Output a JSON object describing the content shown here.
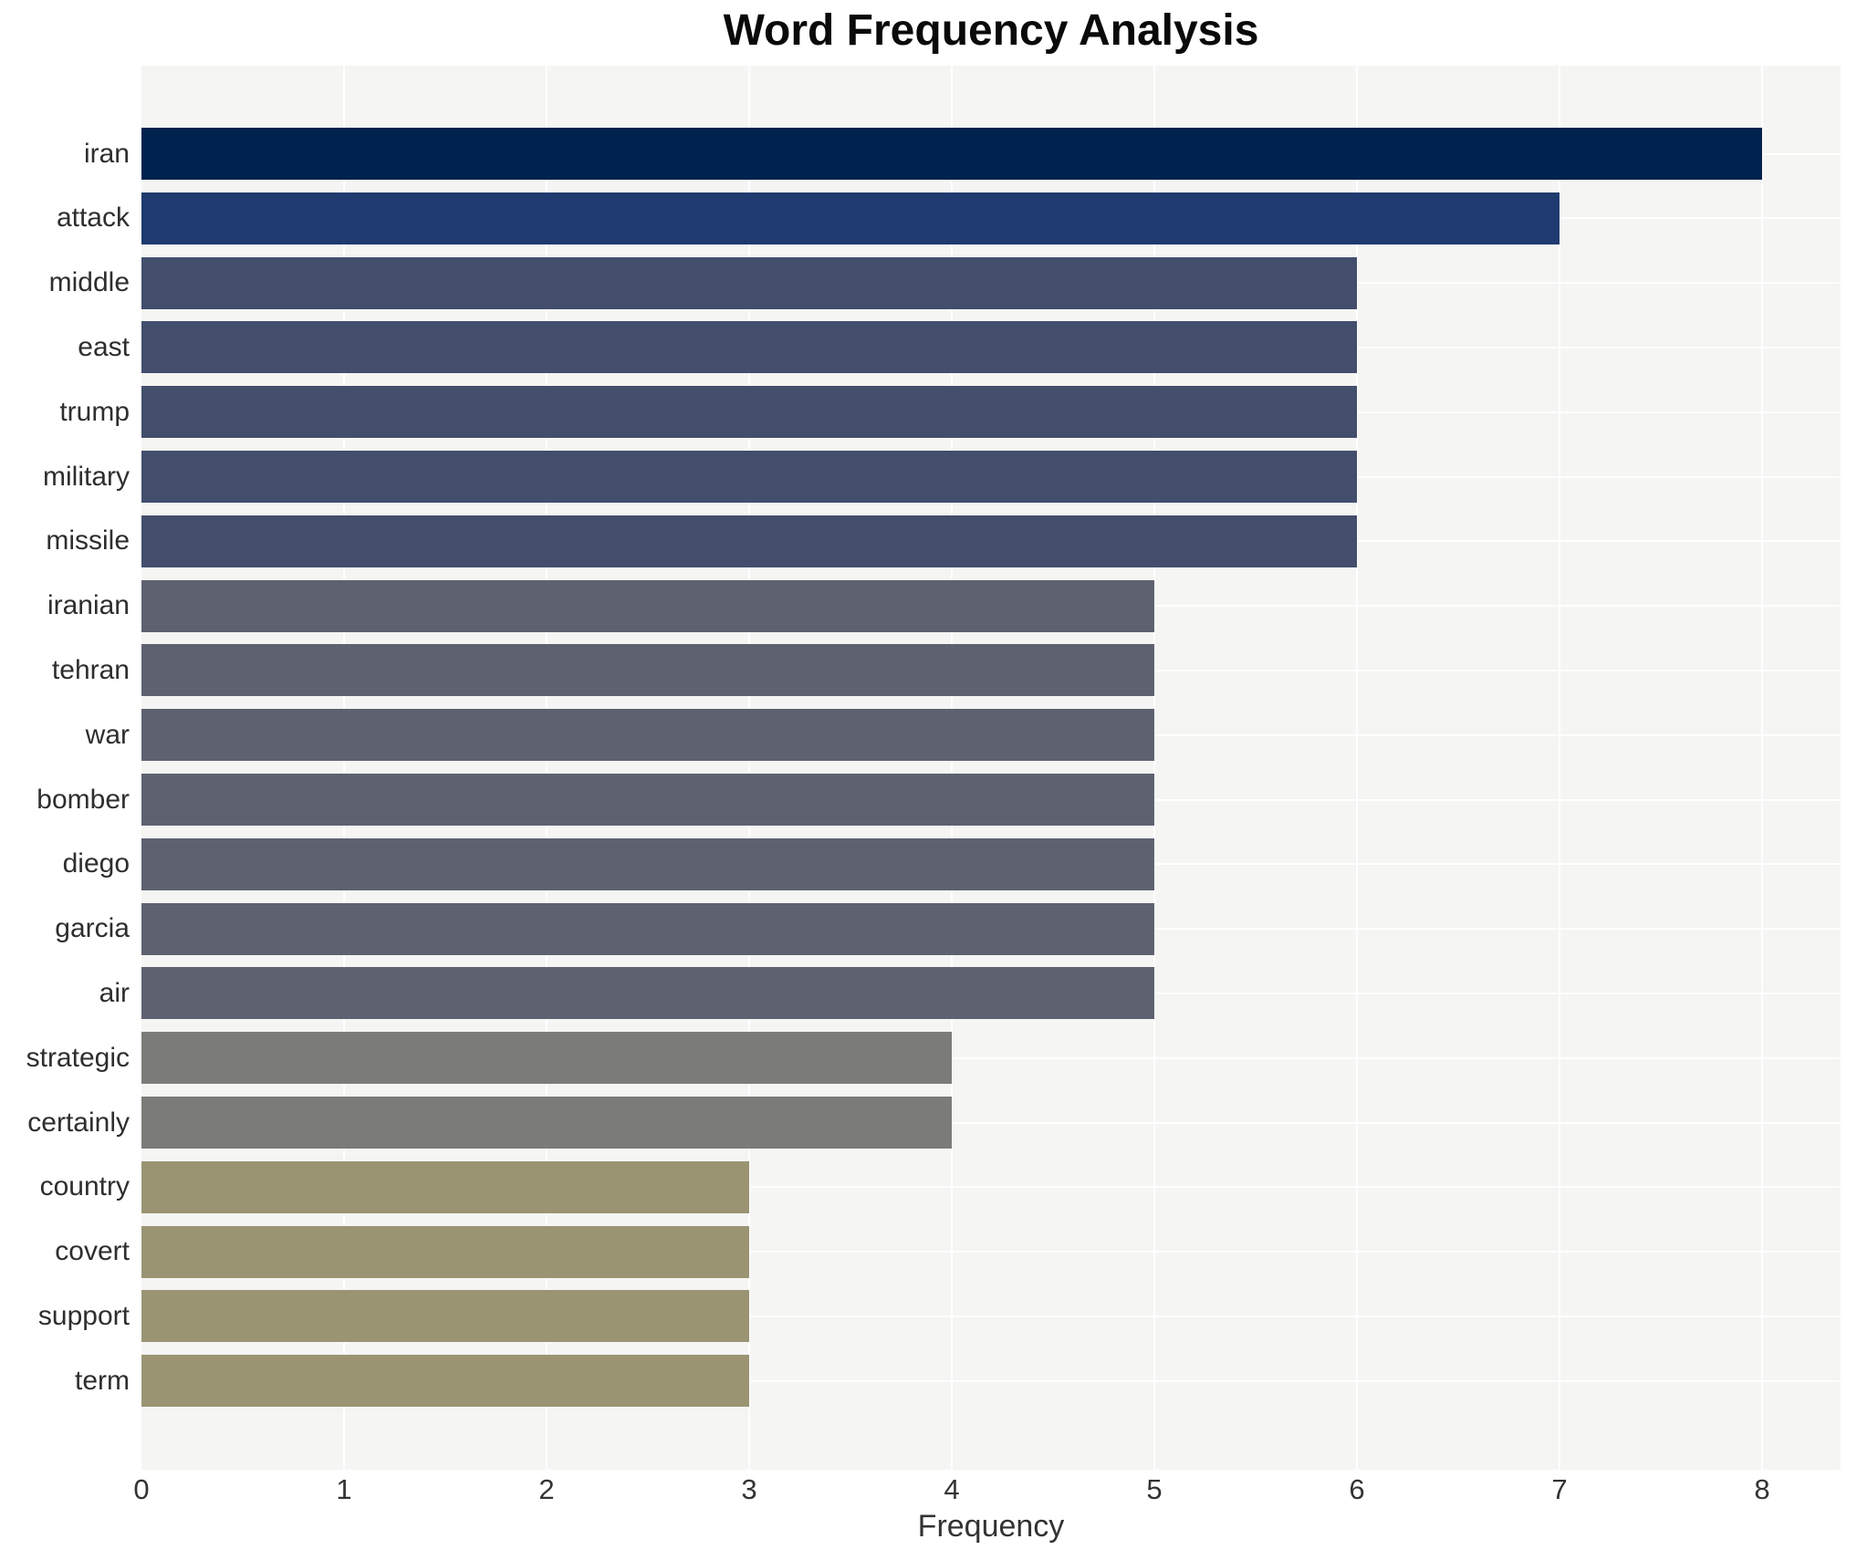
{
  "chart_data": {
    "type": "bar",
    "orientation": "horizontal",
    "title": "Word Frequency Analysis",
    "xlabel": "Frequency",
    "ylabel": "",
    "categories": [
      "iran",
      "attack",
      "middle",
      "east",
      "trump",
      "military",
      "missile",
      "iranian",
      "tehran",
      "war",
      "bomber",
      "diego",
      "garcia",
      "air",
      "strategic",
      "certainly",
      "country",
      "covert",
      "support",
      "term"
    ],
    "values": [
      8,
      7,
      6,
      6,
      6,
      6,
      6,
      5,
      5,
      5,
      5,
      5,
      5,
      5,
      4,
      4,
      3,
      3,
      3,
      3
    ],
    "bar_colors": [
      "#00224e",
      "#1e3a6e",
      "#434e6c",
      "#434e6c",
      "#434e6c",
      "#434e6c",
      "#434e6c",
      "#5e6270",
      "#5e6270",
      "#5e6270",
      "#5e6270",
      "#5e6270",
      "#5e6270",
      "#5e6270",
      "#7b7b77",
      "#7b7b77",
      "#9a9473",
      "#9a9473",
      "#9a9473",
      "#9a9473"
    ],
    "x_ticks": [
      "0",
      "1",
      "2",
      "3",
      "4",
      "5",
      "6",
      "7",
      "8"
    ],
    "xlim": [
      0,
      8.39
    ],
    "grid": true,
    "legend": false,
    "plot_bg": "#f5f5f3",
    "grid_color": "#ffffff"
  }
}
